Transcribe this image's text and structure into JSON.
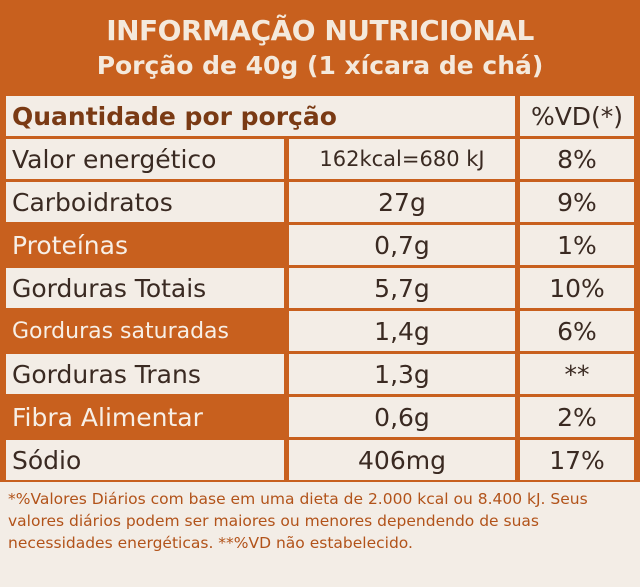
{
  "header": {
    "title": "INFORMAÇÃO NUTRICIONAL",
    "subtitle": "Porção de 40g (1 xícara de chá)"
  },
  "table": {
    "header": [
      "Quantidade por porção",
      "%VD(*)"
    ],
    "rows": [
      [
        "Valor energético",
        "162kcal=680 kJ",
        "8%"
      ],
      [
        "Carboidratos",
        "27g",
        "9%"
      ],
      [
        "Proteínas",
        "0,7g",
        "1%"
      ],
      [
        "Gorduras Totais",
        "5,7g",
        "10%"
      ],
      [
        "Gorduras saturadas",
        "1,4g",
        "6%"
      ],
      [
        "Gorduras Trans",
        "1,3g",
        "**"
      ],
      [
        "Fibra Alimentar",
        "0,6g",
        "2%"
      ],
      [
        "Sódio",
        "406mg",
        "17%"
      ]
    ]
  },
  "footnote": "*%Valores Diários com base em uma dieta de 2.000 kcal ou 8.400 kJ. Seus valores diários podem ser maiores ou menores dependendo de suas necessidades energéticas. **%VD não estabelecido."
}
